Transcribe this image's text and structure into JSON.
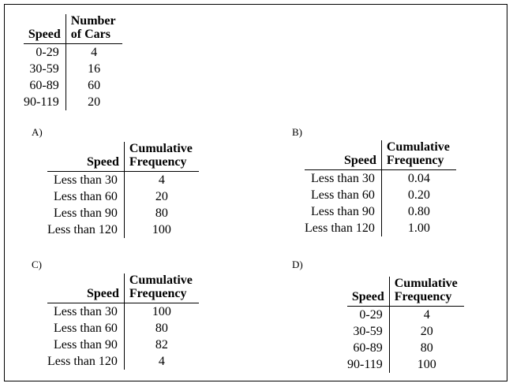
{
  "main_table": {
    "col1_header": "Speed",
    "col2_header_line1": "Number",
    "col2_header_line2": "of Cars",
    "rows": [
      {
        "speed": "0-29",
        "value": "4"
      },
      {
        "speed": "30-59",
        "value": "16"
      },
      {
        "speed": "60-89",
        "value": "60"
      },
      {
        "speed": "90-119",
        "value": "20"
      }
    ]
  },
  "options": [
    {
      "label": "A)",
      "col1_header": "Speed",
      "col2_header_line1": "Cumulative",
      "col2_header_line2": "Frequency",
      "rows": [
        {
          "speed": "Less than 30",
          "value": "4"
        },
        {
          "speed": "Less than 60",
          "value": "20"
        },
        {
          "speed": "Less than 90",
          "value": "80"
        },
        {
          "speed": "Less than 120",
          "value": "100"
        }
      ]
    },
    {
      "label": "B)",
      "col1_header": "Speed",
      "col2_header_line1": "Cumulative",
      "col2_header_line2": "Frequency",
      "rows": [
        {
          "speed": "Less than 30",
          "value": "0.04"
        },
        {
          "speed": "Less than 60",
          "value": "0.20"
        },
        {
          "speed": "Less than 90",
          "value": "0.80"
        },
        {
          "speed": "Less than 120",
          "value": "1.00"
        }
      ]
    },
    {
      "label": "C)",
      "col1_header": "Speed",
      "col2_header_line1": "Cumulative",
      "col2_header_line2": "Frequency",
      "rows": [
        {
          "speed": "Less than 30",
          "value": "100"
        },
        {
          "speed": "Less than 60",
          "value": "80"
        },
        {
          "speed": "Less than 90",
          "value": "82"
        },
        {
          "speed": "Less than 120",
          "value": "4"
        }
      ]
    },
    {
      "label": "D)",
      "col1_header": "Speed",
      "col2_header_line1": "Cumulative",
      "col2_header_line2": "Frequency",
      "rows": [
        {
          "speed": "0-29",
          "value": "4"
        },
        {
          "speed": "30-59",
          "value": "20"
        },
        {
          "speed": "60-89",
          "value": "80"
        },
        {
          "speed": "90-119",
          "value": "100"
        }
      ]
    }
  ]
}
